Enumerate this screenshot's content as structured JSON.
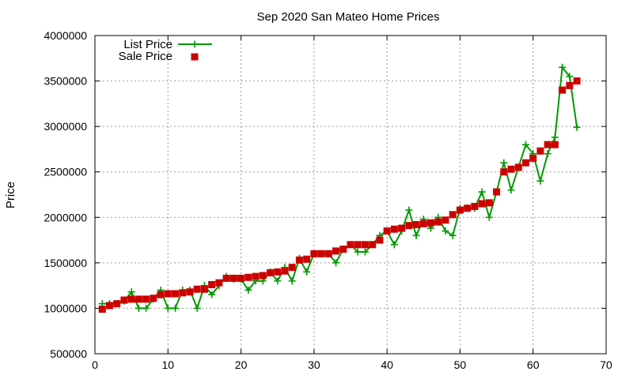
{
  "chart_data": {
    "type": "line",
    "title": "Sep 2020 San Mateo Home Prices",
    "xlabel": "",
    "ylabel": "Price",
    "xlim": [
      0,
      70
    ],
    "ylim": [
      500000,
      4000000
    ],
    "x_ticks": [
      0,
      10,
      20,
      30,
      40,
      50,
      60,
      70
    ],
    "y_ticks": [
      500000,
      1000000,
      1500000,
      2000000,
      2500000,
      3000000,
      3500000,
      4000000
    ],
    "grid": true,
    "legend_position": "top-left",
    "colors": {
      "list": "#009900",
      "sale": "#cc0000"
    },
    "series": [
      {
        "name": "List Price",
        "style": "line-plus",
        "x": [
          1,
          2,
          3,
          4,
          5,
          6,
          7,
          8,
          9,
          10,
          11,
          12,
          13,
          14,
          15,
          16,
          17,
          18,
          19,
          20,
          21,
          22,
          23,
          24,
          25,
          26,
          27,
          28,
          29,
          30,
          31,
          32,
          33,
          34,
          35,
          36,
          37,
          38,
          39,
          40,
          41,
          42,
          43,
          44,
          45,
          46,
          47,
          48,
          49,
          50,
          51,
          52,
          53,
          54,
          55,
          56,
          57,
          58,
          59,
          60,
          61,
          62,
          63,
          64,
          65,
          66
        ],
        "y": [
          1050000,
          1050000,
          1050000,
          1080000,
          1180000,
          1000000,
          1000000,
          1100000,
          1200000,
          1000000,
          1000000,
          1200000,
          1200000,
          1000000,
          1250000,
          1150000,
          1250000,
          1350000,
          1320000,
          1320000,
          1200000,
          1300000,
          1300000,
          1400000,
          1300000,
          1450000,
          1300000,
          1550000,
          1400000,
          1600000,
          1600000,
          1600000,
          1500000,
          1650000,
          1700000,
          1620000,
          1620000,
          1700000,
          1800000,
          1850000,
          1700000,
          1850000,
          2080000,
          1800000,
          1980000,
          1880000,
          2000000,
          1850000,
          1800000,
          2100000,
          2100000,
          2100000,
          2280000,
          2000000,
          2280000,
          2600000,
          2300000,
          2550000,
          2800000,
          2700000,
          2400000,
          2700000,
          2880000,
          3650000,
          3550000,
          2990000
        ]
      },
      {
        "name": "Sale Price",
        "style": "square",
        "x": [
          1,
          2,
          3,
          4,
          5,
          6,
          7,
          8,
          9,
          10,
          11,
          12,
          13,
          14,
          15,
          16,
          17,
          18,
          19,
          20,
          21,
          22,
          23,
          24,
          25,
          26,
          27,
          28,
          29,
          30,
          31,
          32,
          33,
          34,
          35,
          36,
          37,
          38,
          39,
          40,
          41,
          42,
          43,
          44,
          45,
          46,
          47,
          48,
          49,
          50,
          51,
          52,
          53,
          54,
          55,
          56,
          57,
          58,
          59,
          60,
          61,
          62,
          63,
          64,
          65,
          66
        ],
        "y": [
          990000,
          1030000,
          1050000,
          1090000,
          1100000,
          1100000,
          1100000,
          1110000,
          1150000,
          1160000,
          1160000,
          1170000,
          1180000,
          1210000,
          1210000,
          1260000,
          1280000,
          1330000,
          1330000,
          1330000,
          1340000,
          1350000,
          1360000,
          1390000,
          1400000,
          1410000,
          1450000,
          1530000,
          1540000,
          1600000,
          1600000,
          1600000,
          1630000,
          1650000,
          1700000,
          1700000,
          1700000,
          1700000,
          1750000,
          1850000,
          1870000,
          1880000,
          1910000,
          1920000,
          1930000,
          1940000,
          1950000,
          1970000,
          2030000,
          2080000,
          2100000,
          2120000,
          2150000,
          2160000,
          2280000,
          2500000,
          2530000,
          2550000,
          2600000,
          2650000,
          2730000,
          2800000,
          2800000,
          3400000,
          3450000,
          3500000
        ]
      }
    ]
  }
}
